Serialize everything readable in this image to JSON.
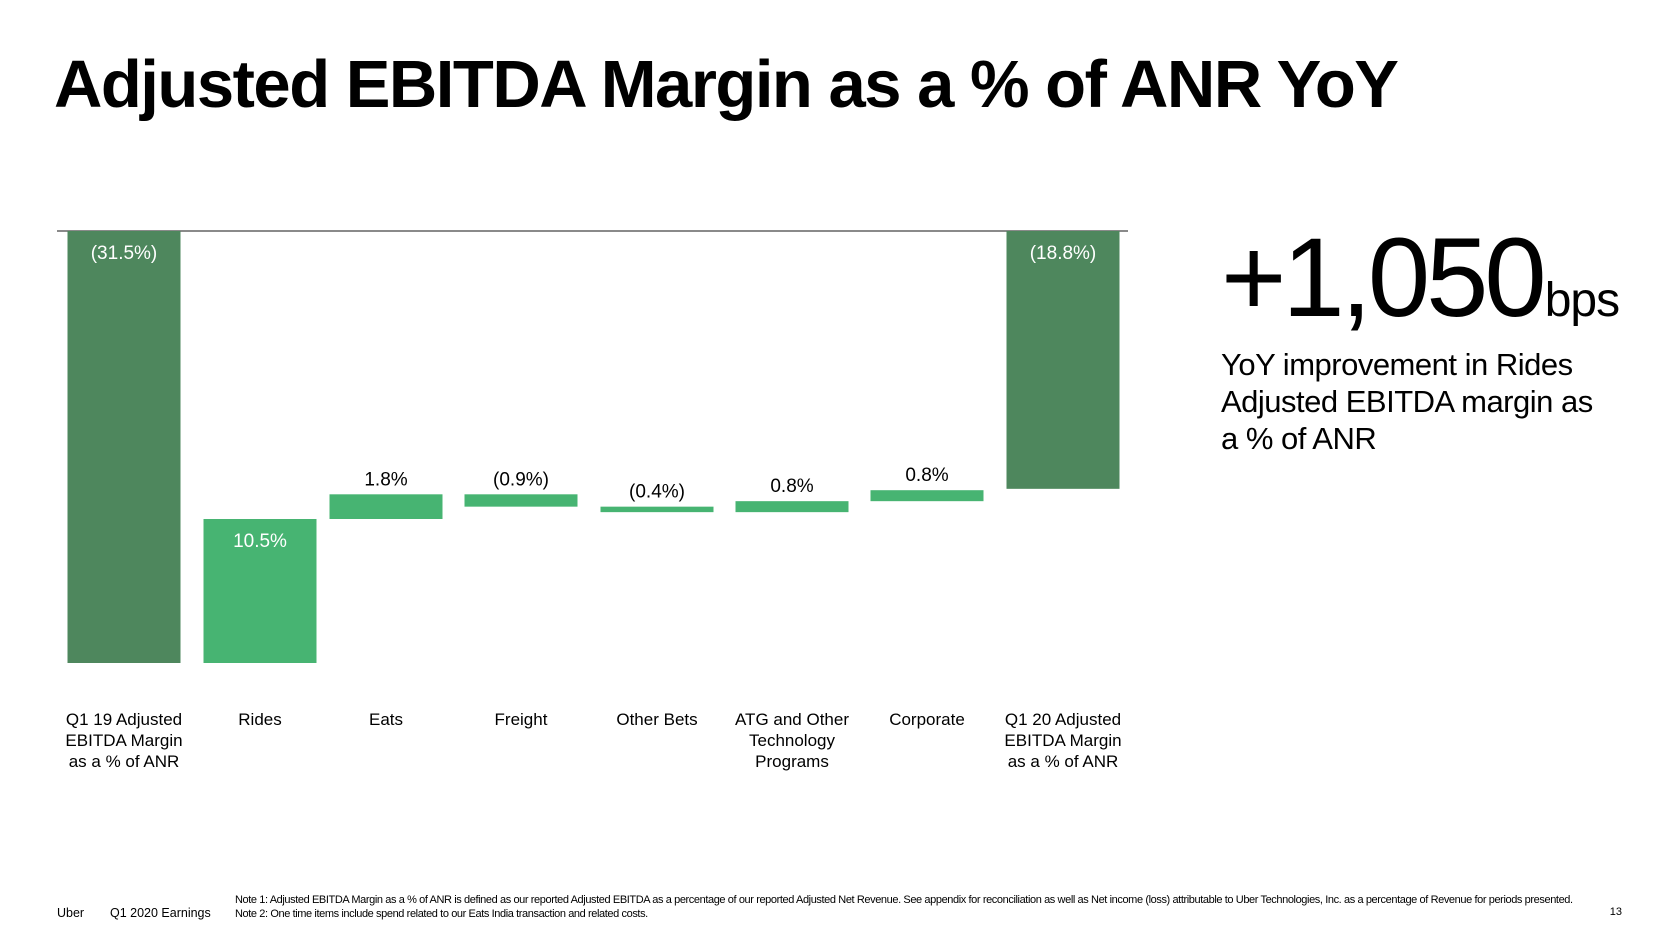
{
  "title": "Adjusted EBITDA Margin as a % of ANR YoY",
  "colors": {
    "total_bar": "#4E875D",
    "delta_bar": "#47B472",
    "baseline": "#8A8A8A",
    "text": "#000000",
    "label_on_bar": "#FFFFFF"
  },
  "chart_data": {
    "type": "bar",
    "subtype": "waterfall",
    "categories": [
      "Q1 19 Adjusted EBITDA Margin as a % of ANR",
      "Rides",
      "Eats",
      "Freight",
      "Other Bets",
      "ATG and Other Technology Programs",
      "Corporate",
      "Q1 20 Adjusted EBITDA Margin as a % of ANR"
    ],
    "category_lines": [
      [
        "Q1 19 Adjusted",
        "EBITDA Margin",
        "as a % of ANR"
      ],
      [
        "Rides"
      ],
      [
        "Eats"
      ],
      [
        "Freight"
      ],
      [
        "Other Bets"
      ],
      [
        "ATG and Other",
        "Technology",
        "Programs"
      ],
      [
        "Corporate"
      ],
      [
        "Q1 20 Adjusted",
        "EBITDA Margin",
        "as a % of ANR"
      ]
    ],
    "values": [
      -31.5,
      10.5,
      1.8,
      -0.9,
      -0.4,
      0.8,
      0.8,
      -18.8
    ],
    "kinds": [
      "total",
      "delta",
      "delta",
      "delta",
      "delta",
      "delta",
      "delta",
      "total"
    ],
    "data_labels": [
      "(31.5%)",
      "10.5%",
      "1.8%",
      "(0.9%)",
      "(0.4%)",
      "0.8%",
      "0.8%",
      "(18.8%)"
    ],
    "ylim": [
      -31.5,
      0
    ],
    "grid": false,
    "legend": "none"
  },
  "callout": {
    "value": "+1,050",
    "unit": "bps",
    "description": "YoY improvement in Rides Adjusted EBITDA margin as a % of ANR"
  },
  "footer": {
    "brand": "Uber",
    "period": "Q1 2020 Earnings",
    "note": "Note 1: Adjusted EBITDA Margin as a % of ANR is defined as our reported Adjusted EBITDA as a percentage of our reported Adjusted Net Revenue. See appendix for reconciliation as well as Net income (loss) attributable to Uber Technologies, Inc. as a percentage of Revenue for periods presented. Note 2: One time items include spend related to our Eats India transaction and related costs.",
    "page": "13"
  }
}
